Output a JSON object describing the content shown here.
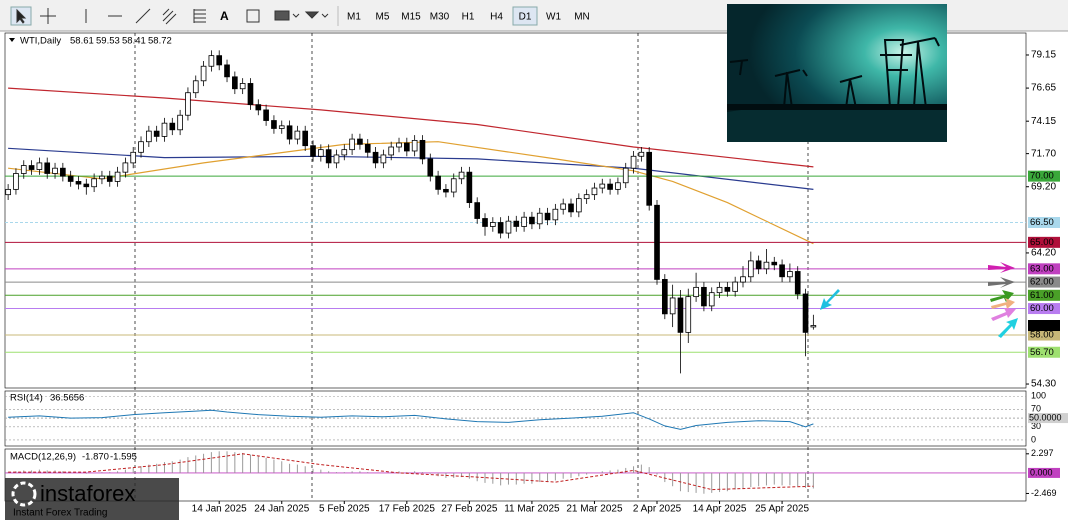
{
  "toolbar": {
    "timeframes": [
      "M1",
      "M5",
      "M15",
      "M30",
      "H1",
      "H4",
      "D1",
      "W1",
      "MN"
    ],
    "selected": 6
  },
  "logo": {
    "brand": "instaforex",
    "tagline": "Instant Forex Trading"
  },
  "chart_data": {
    "type": "candlestick",
    "symbol": "WTI,Daily",
    "xlim": [
      -0.4,
      130.2
    ],
    "ylim": [
      54.0,
      80.81
    ],
    "yticks": [
      79.15,
      76.65,
      74.15,
      {
        "value": 71.7,
        "label": "71.70"
      },
      {
        "value": 69.2,
        "label": "69.20"
      },
      {
        "value": 64.2,
        "label": "64.20"
      },
      {
        "value": 54.3,
        "label": "54.30"
      }
    ],
    "xticks": [
      {
        "value": 27,
        "label": "14 Jan 2025"
      },
      {
        "value": 35,
        "label": "24 Jan 2025"
      },
      {
        "value": 43,
        "label": "5 Feb 2025"
      },
      {
        "value": 51,
        "label": "17 Feb 2025"
      },
      {
        "value": 59,
        "label": "27 Feb 2025"
      },
      {
        "value": 67,
        "label": "11 Mar 2025"
      },
      {
        "value": 75,
        "label": "21 Mar 2025"
      },
      {
        "value": 83,
        "label": "2 Apr 2025"
      },
      {
        "value": 91,
        "label": "14 Apr 2025"
      },
      {
        "value": 99,
        "label": "25 Apr 2025"
      }
    ],
    "candles": [
      [
        68.6,
        69.4,
        68.2,
        69.0
      ],
      [
        69.0,
        70.6,
        68.6,
        70.2
      ],
      [
        70.2,
        71.2,
        69.8,
        70.8
      ],
      [
        70.8,
        71.2,
        70.1,
        70.5
      ],
      [
        70.5,
        71.4,
        70.1,
        71.0
      ],
      [
        71.0,
        71.4,
        69.8,
        70.2
      ],
      [
        70.2,
        71.0,
        69.8,
        70.6
      ],
      [
        70.6,
        71.0,
        69.6,
        70.0
      ],
      [
        70.0,
        70.4,
        69.2,
        69.6
      ],
      [
        69.6,
        70.0,
        69.0,
        69.4
      ],
      [
        69.4,
        69.8,
        68.6,
        69.2
      ],
      [
        69.2,
        70.2,
        68.8,
        69.8
      ],
      [
        69.8,
        70.4,
        69.4,
        70.0
      ],
      [
        70.0,
        70.4,
        69.2,
        69.6
      ],
      [
        69.6,
        70.7,
        69.2,
        70.3
      ],
      [
        70.3,
        71.4,
        69.9,
        71.0
      ],
      [
        71.0,
        72.2,
        70.6,
        71.8
      ],
      [
        71.8,
        73.0,
        71.4,
        72.6
      ],
      [
        72.6,
        73.8,
        72.2,
        73.4
      ],
      [
        73.4,
        73.8,
        72.6,
        73.0
      ],
      [
        73.0,
        74.4,
        72.6,
        74.0
      ],
      [
        74.0,
        74.4,
        73.1,
        73.5
      ],
      [
        73.5,
        75.0,
        73.1,
        74.6
      ],
      [
        74.6,
        76.7,
        74.2,
        76.3
      ],
      [
        76.3,
        77.6,
        75.9,
        77.2
      ],
      [
        77.2,
        78.7,
        76.8,
        78.3
      ],
      [
        78.3,
        79.5,
        77.9,
        79.1
      ],
      [
        79.1,
        79.5,
        78.0,
        78.4
      ],
      [
        78.4,
        78.8,
        77.1,
        77.5
      ],
      [
        77.5,
        77.9,
        76.2,
        76.6
      ],
      [
        76.6,
        77.4,
        76.2,
        77.0
      ],
      [
        77.0,
        77.4,
        75.0,
        75.4
      ],
      [
        75.4,
        75.8,
        74.6,
        75.0
      ],
      [
        75.0,
        75.4,
        73.8,
        74.2
      ],
      [
        74.2,
        74.6,
        73.2,
        73.6
      ],
      [
        73.6,
        74.2,
        73.2,
        73.8
      ],
      [
        73.8,
        74.2,
        72.4,
        72.8
      ],
      [
        72.8,
        73.8,
        72.4,
        73.4
      ],
      [
        73.4,
        73.8,
        71.9,
        72.3
      ],
      [
        72.3,
        72.7,
        71.1,
        71.5
      ],
      [
        71.5,
        72.4,
        71.1,
        72.0
      ],
      [
        72.0,
        72.4,
        70.6,
        71.0
      ],
      [
        71.0,
        72.0,
        70.6,
        71.6
      ],
      [
        71.6,
        72.4,
        71.2,
        72.0
      ],
      [
        72.0,
        73.2,
        71.6,
        72.8
      ],
      [
        72.8,
        73.2,
        72.0,
        72.4
      ],
      [
        72.4,
        72.8,
        71.4,
        71.8
      ],
      [
        71.8,
        72.2,
        70.6,
        71.0
      ],
      [
        71.0,
        72.0,
        70.6,
        71.6
      ],
      [
        71.6,
        72.6,
        71.2,
        72.2
      ],
      [
        72.2,
        72.9,
        71.8,
        72.5
      ],
      [
        72.5,
        72.9,
        71.5,
        71.9
      ],
      [
        71.9,
        73.1,
        71.5,
        72.7
      ],
      [
        72.7,
        73.1,
        70.9,
        71.3
      ],
      [
        71.3,
        71.7,
        69.6,
        70.0
      ],
      [
        70.0,
        70.4,
        68.6,
        69.0
      ],
      [
        69.0,
        69.4,
        68.4,
        68.8
      ],
      [
        68.8,
        70.2,
        68.4,
        69.8
      ],
      [
        69.8,
        70.7,
        69.4,
        70.3
      ],
      [
        70.3,
        70.7,
        67.6,
        68.0
      ],
      [
        68.0,
        68.4,
        66.4,
        66.8
      ],
      [
        66.8,
        67.2,
        65.5,
        66.2
      ],
      [
        66.2,
        66.9,
        65.8,
        66.5
      ],
      [
        66.5,
        66.9,
        65.3,
        65.7
      ],
      [
        65.7,
        67.0,
        65.3,
        66.6
      ],
      [
        66.6,
        67.0,
        65.8,
        66.2
      ],
      [
        66.2,
        67.3,
        65.8,
        66.9
      ],
      [
        66.9,
        67.3,
        66.0,
        66.4
      ],
      [
        66.4,
        67.6,
        66.0,
        67.2
      ],
      [
        67.2,
        67.6,
        66.3,
        66.7
      ],
      [
        66.7,
        67.9,
        66.3,
        67.5
      ],
      [
        67.5,
        68.3,
        67.1,
        67.9
      ],
      [
        67.9,
        68.3,
        66.9,
        67.3
      ],
      [
        67.3,
        68.7,
        66.9,
        68.3
      ],
      [
        68.3,
        69.0,
        67.9,
        68.6
      ],
      [
        68.6,
        69.5,
        68.2,
        69.1
      ],
      [
        69.1,
        69.8,
        68.7,
        69.4
      ],
      [
        69.4,
        69.8,
        68.6,
        69.0
      ],
      [
        69.0,
        69.9,
        68.6,
        69.5
      ],
      [
        69.5,
        71.0,
        69.1,
        70.6
      ],
      [
        70.6,
        71.9,
        70.2,
        71.5
      ],
      [
        71.5,
        72.2,
        71.1,
        71.8
      ],
      [
        71.8,
        72.2,
        67.4,
        67.8
      ],
      [
        67.8,
        68.2,
        61.8,
        62.2
      ],
      [
        62.2,
        62.6,
        59.2,
        59.6
      ],
      [
        59.6,
        61.8,
        58.6,
        60.8
      ],
      [
        60.8,
        61.4,
        55.1,
        58.2
      ],
      [
        58.2,
        61.5,
        57.4,
        60.9
      ],
      [
        60.9,
        62.7,
        60.5,
        61.6
      ],
      [
        61.6,
        62.0,
        59.8,
        60.2
      ],
      [
        60.2,
        61.6,
        59.8,
        61.2
      ],
      [
        61.2,
        62.0,
        60.8,
        61.6
      ],
      [
        61.6,
        62.0,
        60.9,
        61.3
      ],
      [
        61.3,
        62.4,
        60.9,
        62.0
      ],
      [
        62.0,
        63.2,
        61.6,
        62.4
      ],
      [
        62.4,
        64.3,
        62.0,
        63.6
      ],
      [
        63.6,
        64.0,
        62.6,
        63.0
      ],
      [
        63.0,
        64.5,
        62.6,
        63.5
      ],
      [
        63.5,
        63.9,
        62.9,
        63.3
      ],
      [
        63.3,
        63.7,
        62.0,
        62.4
      ],
      [
        62.4,
        63.4,
        62.0,
        62.8
      ],
      [
        62.8,
        63.2,
        60.7,
        61.1
      ],
      [
        61.1,
        61.5,
        56.4,
        58.2
      ],
      [
        58.61,
        59.53,
        58.41,
        58.72
      ]
    ],
    "moving_averages": [
      {
        "color": "#c0262e",
        "x": [
          0,
          20,
          40,
          60,
          80,
          103
        ],
        "values": [
          76.65,
          75.9,
          75.0,
          73.9,
          72.2,
          70.7
        ]
      },
      {
        "color": "#2a3b8f",
        "x": [
          0,
          20,
          40,
          60,
          80,
          103
        ],
        "values": [
          72.1,
          71.4,
          71.5,
          71.3,
          70.6,
          69.0
        ]
      },
      {
        "color": "#e0a030",
        "x": [
          0,
          12,
          25,
          43,
          55,
          70,
          80,
          85,
          92,
          103
        ],
        "values": [
          70.6,
          69.8,
          71.0,
          72.4,
          72.6,
          71.3,
          70.4,
          69.6,
          68.0,
          64.9
        ]
      }
    ],
    "levels": [
      {
        "value": 70,
        "label": "70.00",
        "color": "#3aa83a"
      },
      {
        "value": 66.5,
        "label": "66.50",
        "color": "#a9d8ec",
        "dashed": true
      },
      {
        "value": 65,
        "label": "65.00",
        "color": "#b0103a"
      },
      {
        "value": 63,
        "label": "63.00",
        "color": "#c040c0"
      },
      {
        "value": 62,
        "label": "62.00",
        "color": "#8a8a8a"
      },
      {
        "value": 61,
        "label": "61.00",
        "color": "#4aa028"
      },
      {
        "value": 60,
        "label": "60.00",
        "color": "#b87cf0"
      },
      {
        "value": 58,
        "label": "58.00",
        "color": "#c8b878"
      },
      {
        "value": 56.7,
        "label": "56.70",
        "color": "#9ee070"
      }
    ],
    "rsi": {
      "name": "RSI(14)",
      "ylim": [
        -14,
        112
      ],
      "yticks": [
        100,
        70,
        30,
        0
      ],
      "level": {
        "value": 50,
        "label": "50.0000"
      },
      "x": [
        0,
        4,
        8,
        12,
        16,
        20,
        24,
        26,
        28,
        32,
        36,
        40,
        44,
        48,
        52,
        56,
        60,
        64,
        68,
        72,
        76,
        80,
        82,
        84,
        86,
        88,
        92,
        96,
        100,
        102,
        103
      ],
      "values": [
        52,
        55,
        50,
        51,
        58,
        62,
        66,
        68,
        64,
        58,
        54,
        52,
        55,
        53,
        56,
        48,
        42,
        40,
        46,
        50,
        54,
        62,
        48,
        32,
        24,
        33,
        40,
        44,
        42,
        30,
        36.5656
      ]
    },
    "macd": {
      "name": "MACD(12,26,9)",
      "header_labels": [
        "-1.870",
        "-1.595"
      ],
      "ylim": [
        -3.375,
        2.875
      ],
      "yticks": [
        2.297,
        {
          "value": 0,
          "label": "0.000"
        },
        -2.469
      ],
      "values": [
        0.1,
        0.2,
        0.3,
        0.3,
        0.4,
        0.3,
        0.3,
        0.2,
        0.1,
        0.0,
        -0.1,
        0.0,
        0.1,
        0.1,
        0.2,
        0.4,
        0.6,
        0.8,
        1.0,
        1.1,
        1.3,
        1.4,
        1.6,
        1.9,
        2.1,
        2.3,
        2.5,
        2.6,
        2.6,
        2.5,
        2.4,
        2.2,
        2.0,
        1.8,
        1.6,
        1.4,
        1.1,
        1.0,
        0.8,
        0.5,
        0.4,
        0.2,
        0.1,
        0.1,
        0.2,
        0.2,
        0.1,
        0.0,
        0.0,
        0.1,
        0.2,
        0.1,
        0.2,
        0.1,
        -0.1,
        -0.4,
        -0.6,
        -0.6,
        -0.5,
        -0.7,
        -1.0,
        -1.2,
        -1.3,
        -1.5,
        -1.4,
        -1.4,
        -1.3,
        -1.3,
        -1.1,
        -1.1,
        -0.9,
        -0.7,
        -0.6,
        -0.4,
        -0.2,
        0.0,
        0.2,
        0.3,
        0.4,
        0.6,
        0.8,
        1.0,
        0.7,
        -0.2,
        -1.1,
        -1.6,
        -2.2,
        -2.3,
        -2.4,
        -2.5,
        -2.4,
        -2.3,
        -2.2,
        -2.0,
        -1.9,
        -1.7,
        -1.6,
        -1.5,
        -1.4,
        -1.5,
        -1.5,
        -1.6,
        -1.8,
        -1.87
      ],
      "signal_x": [
        0,
        10,
        20,
        30,
        40,
        50,
        60,
        70,
        80,
        90,
        103
      ],
      "signal": [
        0.1,
        0.1,
        1.0,
        2.3,
        1.0,
        0.0,
        -0.5,
        -1.1,
        0.3,
        -2.0,
        -1.595
      ]
    }
  }
}
